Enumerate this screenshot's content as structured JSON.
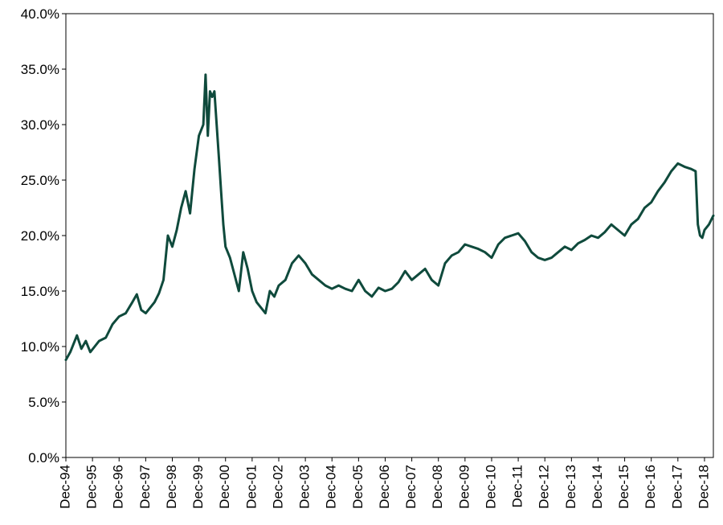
{
  "chart_data": {
    "type": "line",
    "title": "",
    "xlabel": "",
    "ylabel": "",
    "ylim": [
      0,
      0.4
    ],
    "y_ticks": [
      0,
      0.05,
      0.1,
      0.15,
      0.2,
      0.25,
      0.3,
      0.35,
      0.4
    ],
    "y_tick_labels": [
      "0.0%",
      "5.0%",
      "10.0%",
      "15.0%",
      "20.0%",
      "25.0%",
      "30.0%",
      "35.0%",
      "40.0%"
    ],
    "x_range": [
      "1994-12",
      "2019-04"
    ],
    "x_ticks": [
      "1994-12",
      "1995-12",
      "1996-12",
      "1997-12",
      "1998-12",
      "1999-12",
      "2000-12",
      "2001-12",
      "2002-12",
      "2003-12",
      "2004-12",
      "2005-12",
      "2006-12",
      "2007-12",
      "2008-12",
      "2009-12",
      "2010-12",
      "2011-12",
      "2012-12",
      "2013-12",
      "2014-12",
      "2015-12",
      "2016-12",
      "2017-12",
      "2018-12"
    ],
    "x_tick_labels": [
      "Dec-94",
      "Dec-95",
      "Dec-96",
      "Dec-97",
      "Dec-98",
      "Dec-99",
      "Dec-00",
      "Dec-01",
      "Dec-02",
      "Dec-03",
      "Dec-04",
      "Dec-05",
      "Dec-06",
      "Dec-07",
      "Dec-08",
      "Dec-09",
      "Dec-10",
      "Dec-11",
      "Dec-12",
      "Dec-13",
      "Dec-14",
      "Dec-15",
      "Dec-16",
      "Dec-17",
      "Dec-18"
    ],
    "grid": false,
    "legend": "none",
    "line_color": "#0f4a3c",
    "series": [
      {
        "x": [
          "1994-12",
          "1995-02",
          "1995-05",
          "1995-07",
          "1995-09",
          "1995-11",
          "1996-01",
          "1996-03",
          "1996-06",
          "1996-09",
          "1996-12",
          "1997-03",
          "1997-06",
          "1997-08",
          "1997-10",
          "1997-12",
          "1998-02",
          "1998-04",
          "1998-06",
          "1998-08",
          "1998-10",
          "1998-12",
          "1999-02",
          "1999-04",
          "1999-06",
          "1999-08",
          "1999-10",
          "1999-12",
          "2000-02",
          "2000-03",
          "2000-04",
          "2000-05",
          "2000-06",
          "2000-07",
          "2000-08",
          "2000-09",
          "2000-10",
          "2000-11",
          "2000-12",
          "2001-02",
          "2001-04",
          "2001-06",
          "2001-08",
          "2001-10",
          "2001-12",
          "2002-02",
          "2002-04",
          "2002-06",
          "2002-08",
          "2002-10",
          "2002-12",
          "2003-03",
          "2003-06",
          "2003-09",
          "2003-12",
          "2004-03",
          "2004-06",
          "2004-09",
          "2004-12",
          "2005-03",
          "2005-06",
          "2005-09",
          "2005-12",
          "2006-03",
          "2006-06",
          "2006-09",
          "2006-12",
          "2007-03",
          "2007-06",
          "2007-09",
          "2007-12",
          "2008-03",
          "2008-06",
          "2008-09",
          "2008-12",
          "2009-03",
          "2009-06",
          "2009-09",
          "2009-12",
          "2010-03",
          "2010-06",
          "2010-09",
          "2010-12",
          "2011-03",
          "2011-06",
          "2011-09",
          "2011-12",
          "2012-03",
          "2012-06",
          "2012-09",
          "2012-12",
          "2013-03",
          "2013-06",
          "2013-09",
          "2013-12",
          "2014-03",
          "2014-06",
          "2014-09",
          "2014-12",
          "2015-03",
          "2015-06",
          "2015-09",
          "2015-12",
          "2016-03",
          "2016-06",
          "2016-09",
          "2016-12",
          "2017-03",
          "2017-06",
          "2017-09",
          "2017-12",
          "2018-03",
          "2018-06",
          "2018-08",
          "2018-09",
          "2018-10",
          "2018-11",
          "2018-12",
          "2019-02",
          "2019-04"
        ],
        "values": [
          0.088,
          0.095,
          0.11,
          0.098,
          0.105,
          0.095,
          0.1,
          0.105,
          0.108,
          0.12,
          0.127,
          0.13,
          0.14,
          0.147,
          0.133,
          0.13,
          0.135,
          0.14,
          0.148,
          0.16,
          0.2,
          0.19,
          0.205,
          0.225,
          0.24,
          0.22,
          0.26,
          0.29,
          0.3,
          0.345,
          0.29,
          0.33,
          0.325,
          0.33,
          0.3,
          0.27,
          0.24,
          0.21,
          0.19,
          0.18,
          0.165,
          0.15,
          0.185,
          0.17,
          0.15,
          0.14,
          0.135,
          0.13,
          0.15,
          0.145,
          0.155,
          0.16,
          0.175,
          0.182,
          0.175,
          0.165,
          0.16,
          0.155,
          0.152,
          0.155,
          0.152,
          0.15,
          0.16,
          0.15,
          0.145,
          0.153,
          0.15,
          0.152,
          0.158,
          0.168,
          0.16,
          0.165,
          0.17,
          0.16,
          0.155,
          0.175,
          0.182,
          0.185,
          0.192,
          0.19,
          0.188,
          0.185,
          0.18,
          0.192,
          0.198,
          0.2,
          0.202,
          0.195,
          0.185,
          0.18,
          0.178,
          0.18,
          0.185,
          0.19,
          0.187,
          0.193,
          0.196,
          0.2,
          0.198,
          0.203,
          0.21,
          0.205,
          0.2,
          0.21,
          0.215,
          0.225,
          0.23,
          0.24,
          0.248,
          0.258,
          0.265,
          0.262,
          0.26,
          0.258,
          0.21,
          0.2,
          0.198,
          0.205,
          0.21,
          0.218
        ]
      }
    ]
  }
}
